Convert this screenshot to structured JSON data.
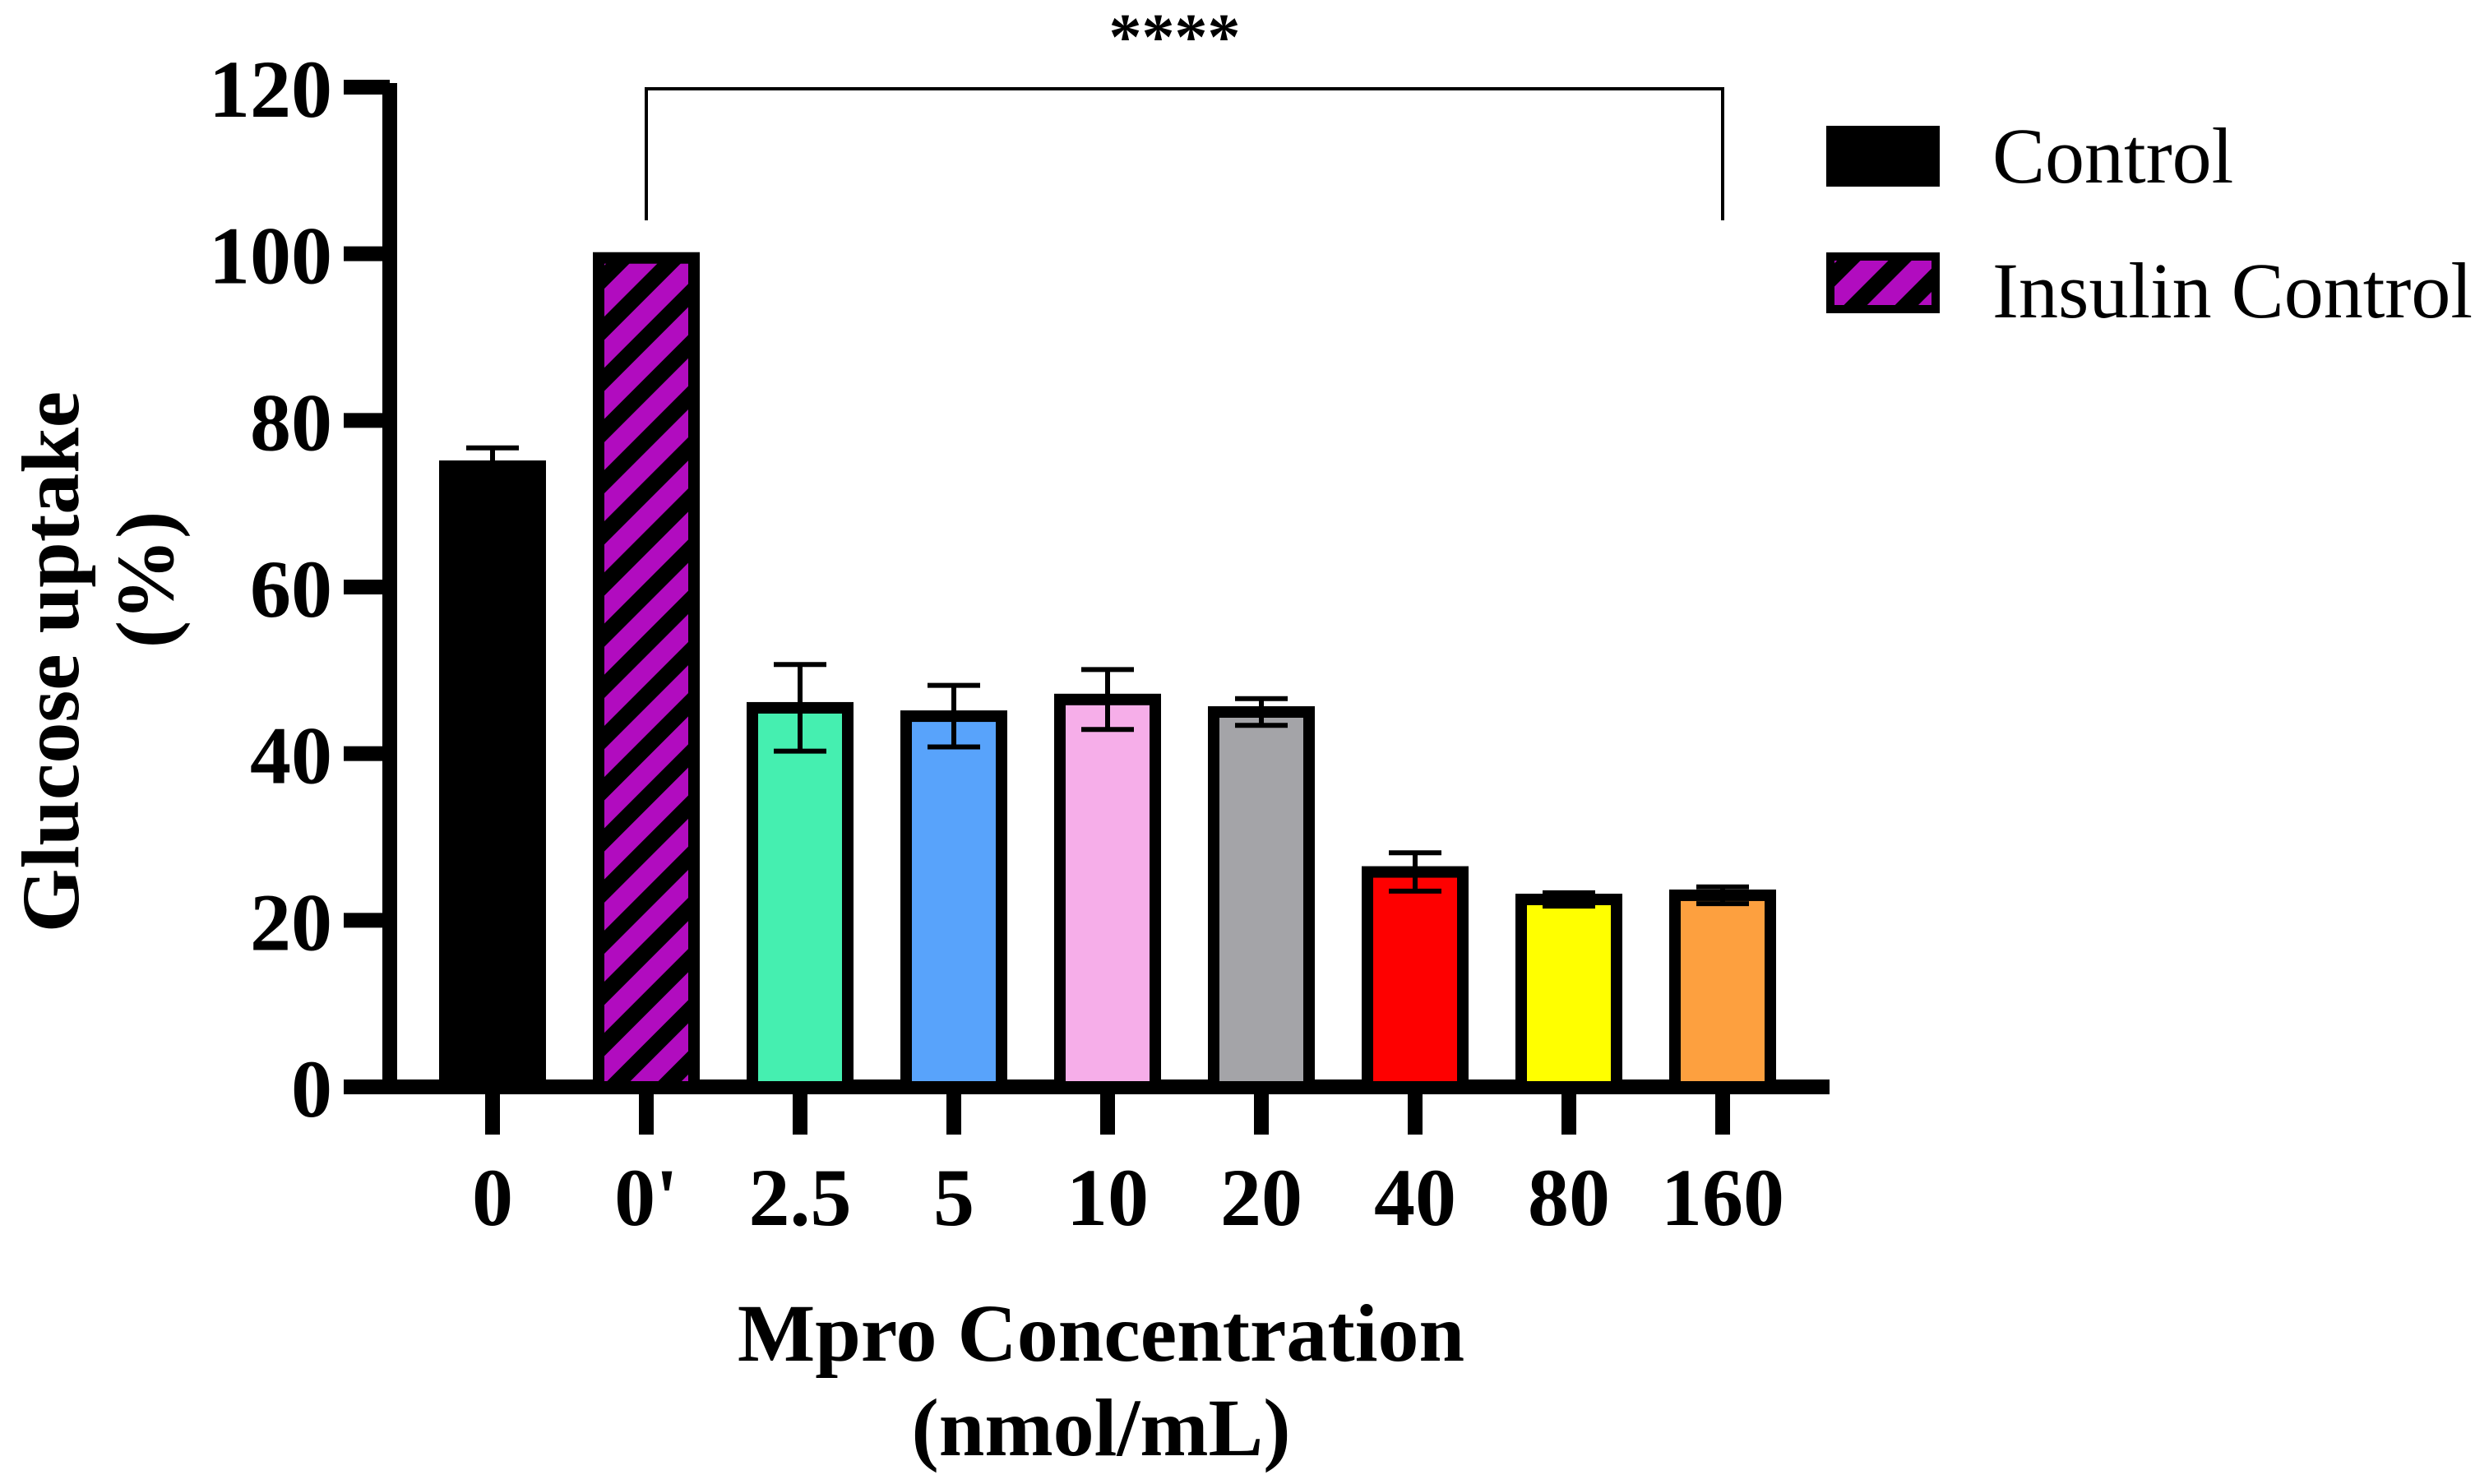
{
  "chart_data": {
    "type": "bar",
    "categories": [
      "0",
      "0'",
      "2.5",
      "5",
      "10",
      "20",
      "40",
      "80",
      "160"
    ],
    "values": [
      74.5,
      99.5,
      45.5,
      44.5,
      46.5,
      45.0,
      25.8,
      22.5,
      23.0
    ],
    "errors": [
      2.2,
      0,
      5.2,
      3.7,
      3.6,
      1.6,
      2.3,
      0.8,
      1.0
    ],
    "colors": [
      "#000000",
      "#b10cbf",
      "#45efb0",
      "#58a3fb",
      "#f6aee9",
      "#a4a4a8",
      "#fe0000",
      "#ffff00",
      "#fda03f"
    ],
    "ylim": [
      0,
      120
    ],
    "yticks": [
      "0",
      "20",
      "40",
      "60",
      "80",
      "100",
      "120"
    ],
    "ylabel_line1": "Glucose uptake",
    "ylabel_line2": "(%)",
    "xlabel_line1": "Mpro Concentration",
    "xlabel_line2": "(nmol/mL)",
    "significance": {
      "label": "****",
      "from_category": "0'",
      "to_category": "160"
    },
    "legend": [
      {
        "label": "Control",
        "color": "#000000",
        "pattern": "solid"
      },
      {
        "label": "Insulin Control",
        "color": "#b10cbf",
        "pattern": "hatched"
      }
    ],
    "legend_position": "top-right"
  }
}
